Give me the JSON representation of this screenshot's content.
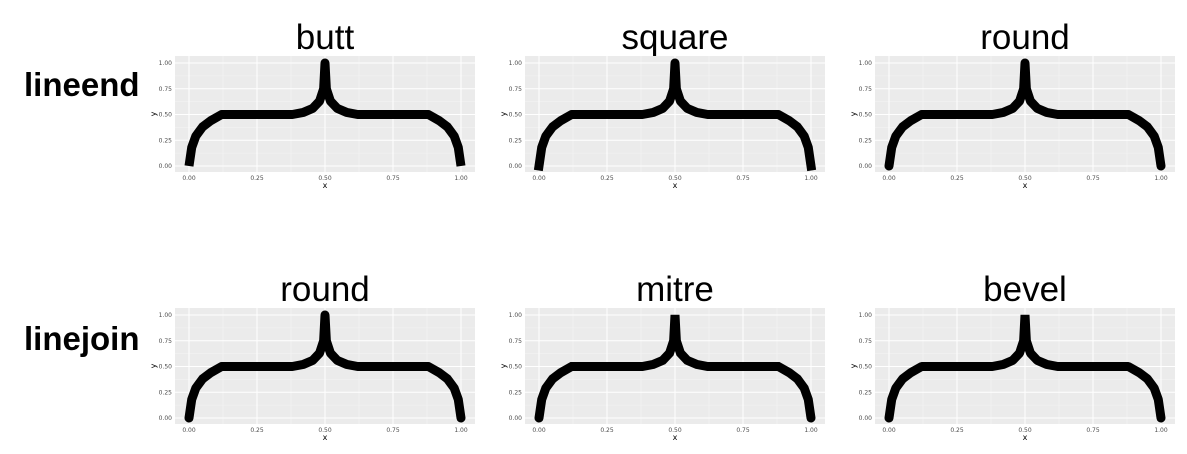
{
  "rows": [
    {
      "label": "lineend",
      "titles": [
        "butt",
        "square",
        "round"
      ]
    },
    {
      "label": "linejoin",
      "titles": [
        "round",
        "mitre",
        "bevel"
      ]
    }
  ],
  "chart_data": {
    "type": "line",
    "xlabel": "x",
    "ylabel": "y",
    "xlim": [
      0,
      1
    ],
    "ylim": [
      0,
      1
    ],
    "x_ticks": [
      "0.00",
      "0.25",
      "0.50",
      "0.75",
      "1.00"
    ],
    "y_ticks": [
      "0.00",
      "0.25",
      "0.50",
      "0.75",
      "1.00"
    ],
    "grid": true,
    "background": "#ebebeb",
    "line_color": "#000000",
    "curve": {
      "x": [
        0.0,
        0.01,
        0.025,
        0.05,
        0.08,
        0.12,
        0.25,
        0.38,
        0.42,
        0.455,
        0.48,
        0.495,
        0.5,
        0.505,
        0.52,
        0.545,
        0.58,
        0.62,
        0.75,
        0.88,
        0.92,
        0.95,
        0.975,
        0.99,
        1.0
      ],
      "y": [
        0.0,
        0.18,
        0.29,
        0.38,
        0.44,
        0.5,
        0.5,
        0.5,
        0.52,
        0.56,
        0.63,
        0.75,
        1.0,
        0.75,
        0.63,
        0.56,
        0.52,
        0.5,
        0.5,
        0.5,
        0.44,
        0.38,
        0.29,
        0.18,
        0.0
      ]
    }
  }
}
